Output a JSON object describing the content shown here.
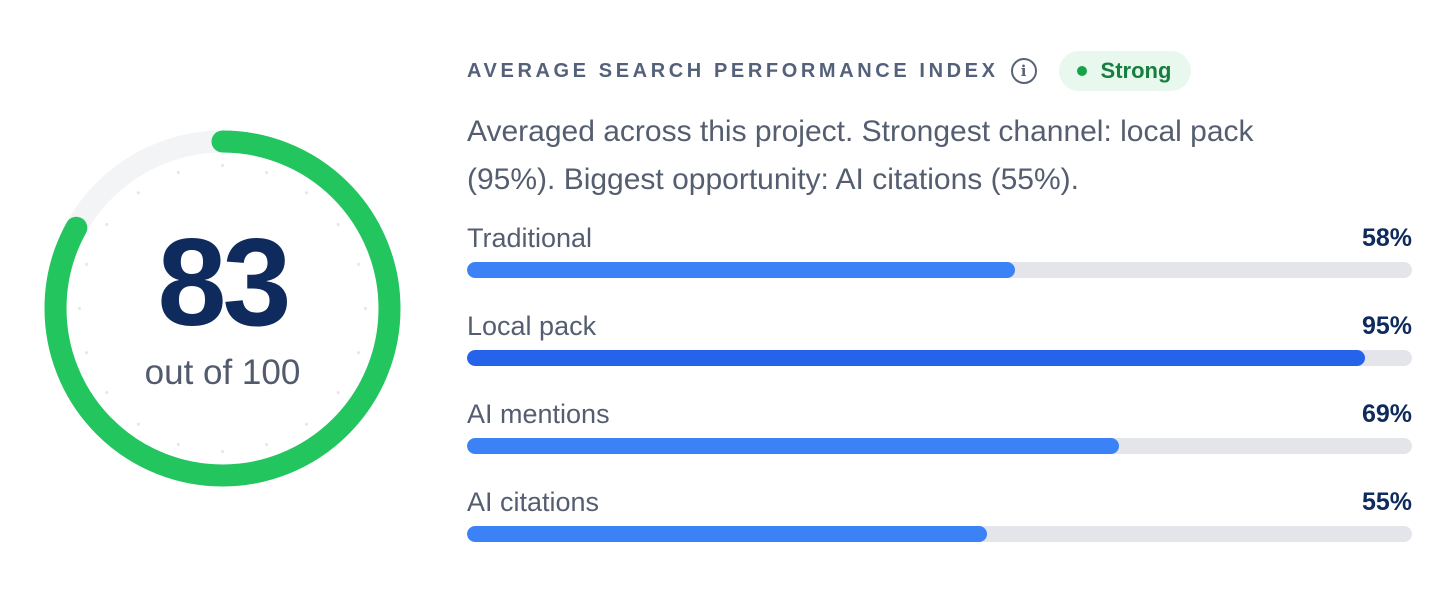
{
  "score": {
    "value": 83,
    "value_text": "83",
    "max_text": "out of 100",
    "fraction": 0.83,
    "color": "#22c55e",
    "track_color": "#f3f4f6"
  },
  "header": {
    "title": "AVERAGE SEARCH PERFORMANCE INDEX",
    "info_symbol": "i",
    "badge": {
      "label": "Strong",
      "text_color": "#15803d",
      "dot_color": "#16a34a",
      "background": "#e9f8ee"
    }
  },
  "summary": "Averaged across this project. Strongest channel: local pack (95%). Biggest opportunity: AI citations (55%).",
  "metrics": [
    {
      "label": "Traditional",
      "value_text": "58%",
      "value": 58,
      "color": "#3b82f6"
    },
    {
      "label": "Local pack",
      "value_text": "95%",
      "value": 95,
      "color": "#2563eb"
    },
    {
      "label": "AI mentions",
      "value_text": "69%",
      "value": 69,
      "color": "#3b82f6"
    },
    {
      "label": "AI citations",
      "value_text": "55%",
      "value": 55,
      "color": "#3b82f6"
    }
  ]
}
